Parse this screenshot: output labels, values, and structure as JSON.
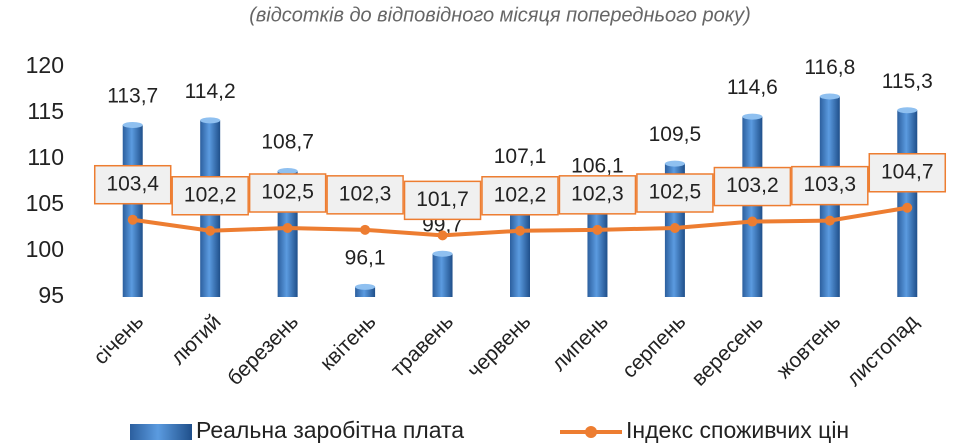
{
  "chart_data": {
    "type": "bar",
    "title": "(відсотків до відповідного місяця попереднього року)",
    "categories": [
      "січень",
      "лютий",
      "березень",
      "квітень",
      "травень",
      "червень",
      "липень",
      "серпень",
      "вересень",
      "жовтень",
      "листопад"
    ],
    "series": [
      {
        "name": "Реальна заробітна плата",
        "type": "bar",
        "color": "#4a86c8",
        "values": [
          113.7,
          114.2,
          108.7,
          96.1,
          99.7,
          107.1,
          106.1,
          109.5,
          114.6,
          116.8,
          115.3
        ],
        "value_labels": [
          "113,7",
          "114,2",
          "108,7",
          "96,1",
          "99,7",
          "107,1",
          "106,1",
          "109,5",
          "114,6",
          "116,8",
          "115,3"
        ]
      },
      {
        "name": "Індекс споживчих цін",
        "type": "line",
        "color": "#ed7d31",
        "values": [
          103.4,
          102.2,
          102.5,
          102.3,
          101.7,
          102.2,
          102.3,
          102.5,
          103.2,
          103.3,
          104.7
        ],
        "value_labels": [
          "103,4",
          "102,2",
          "102,5",
          "102,3",
          "101,7",
          "102,2",
          "102,3",
          "102,5",
          "103,2",
          "103,3",
          "104,7"
        ]
      }
    ],
    "ylim": [
      95,
      120
    ],
    "yticks": [
      95,
      100,
      105,
      110,
      115,
      120
    ],
    "grid": false
  }
}
